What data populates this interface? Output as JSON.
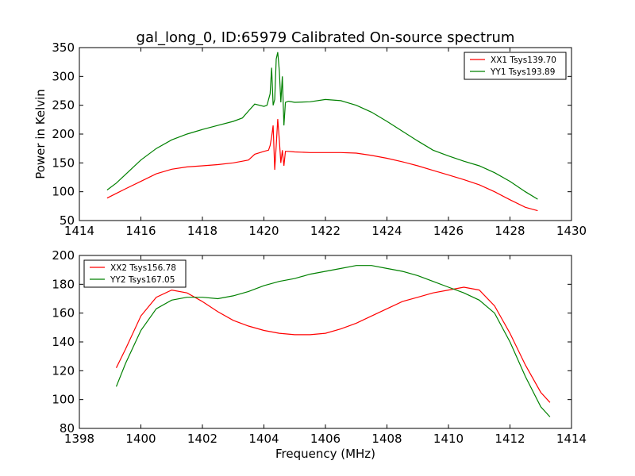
{
  "chart_data": {
    "title": "gal_long_0, ID:65979 Calibrated On-source spectrum",
    "xlabel": "Frequency (MHz)",
    "ylabel": "Power in Kelvin",
    "subplots": [
      {
        "type": "line",
        "xlim": [
          1414,
          1430
        ],
        "ylim": [
          50,
          350
        ],
        "xticks": [
          1414,
          1416,
          1418,
          1420,
          1422,
          1424,
          1426,
          1428,
          1430
        ],
        "yticks": [
          50,
          100,
          150,
          200,
          250,
          300,
          350
        ],
        "legend_position": "top-right",
        "grid": false,
        "series": [
          {
            "name": "XX1 Tsys139.70",
            "color": "#ff0000",
            "x": [
              1414.9,
              1415.2,
              1415.5,
              1416.0,
              1416.5,
              1417.0,
              1417.5,
              1418.0,
              1418.5,
              1419.0,
              1419.3,
              1419.5,
              1419.7,
              1420.0,
              1420.15,
              1420.2,
              1420.25,
              1420.3,
              1420.35,
              1420.4,
              1420.45,
              1420.5,
              1420.55,
              1420.6,
              1420.65,
              1420.7,
              1420.8,
              1421.0,
              1421.5,
              1422.0,
              1422.5,
              1423.0,
              1423.5,
              1424.0,
              1424.5,
              1425.0,
              1425.5,
              1426.0,
              1426.5,
              1427.0,
              1427.5,
              1428.0,
              1428.5,
              1428.9
            ],
            "y": [
              89,
              97,
              105,
              118,
              131,
              139,
              143,
              145,
              147,
              150,
              153,
              155,
              165,
              170,
              172,
              180,
              195,
              215,
              138,
              180,
              226,
              190,
              150,
              172,
              145,
              170,
              170,
              169,
              168,
              168,
              168,
              167,
              163,
              158,
              152,
              145,
              137,
              129,
              121,
              112,
              100,
              86,
              73,
              67
            ]
          },
          {
            "name": "YY1 Tsys193.89",
            "color": "#008000",
            "x": [
              1414.9,
              1415.2,
              1415.5,
              1416.0,
              1416.5,
              1417.0,
              1417.5,
              1418.0,
              1418.5,
              1419.0,
              1419.3,
              1419.5,
              1419.7,
              1420.0,
              1420.1,
              1420.2,
              1420.25,
              1420.3,
              1420.35,
              1420.4,
              1420.45,
              1420.5,
              1420.55,
              1420.6,
              1420.65,
              1420.7,
              1420.8,
              1421.0,
              1421.5,
              1422.0,
              1422.5,
              1423.0,
              1423.5,
              1424.0,
              1424.5,
              1425.0,
              1425.5,
              1426.0,
              1426.5,
              1427.0,
              1427.5,
              1428.0,
              1428.5,
              1428.9
            ],
            "y": [
              103,
              115,
              130,
              155,
              175,
              190,
              200,
              208,
              215,
              222,
              228,
              240,
              252,
              248,
              250,
              270,
              315,
              250,
              260,
              330,
              342,
              310,
              255,
              300,
              215,
              255,
              257,
              255,
              256,
              260,
              258,
              250,
              238,
              222,
              205,
              188,
              172,
              162,
              153,
              145,
              133,
              118,
              100,
              87
            ]
          }
        ]
      },
      {
        "type": "line",
        "xlim": [
          1398,
          1414
        ],
        "ylim": [
          80,
          200
        ],
        "xticks": [
          1398,
          1400,
          1402,
          1404,
          1406,
          1408,
          1410,
          1412,
          1414
        ],
        "yticks": [
          80,
          100,
          120,
          140,
          160,
          180,
          200
        ],
        "legend_position": "top-left",
        "grid": false,
        "series": [
          {
            "name": "XX2 Tsys156.78",
            "color": "#ff0000",
            "x": [
              1399.2,
              1399.5,
              1400.0,
              1400.5,
              1401.0,
              1401.5,
              1402.0,
              1402.5,
              1403.0,
              1403.5,
              1404.0,
              1404.5,
              1405.0,
              1405.5,
              1406.0,
              1406.5,
              1407.0,
              1407.5,
              1408.0,
              1408.5,
              1409.0,
              1409.5,
              1410.0,
              1410.5,
              1411.0,
              1411.5,
              1412.0,
              1412.5,
              1413.0,
              1413.3
            ],
            "y": [
              122,
              135,
              158,
              171,
              176,
              174,
              168,
              161,
              155,
              151,
              148,
              146,
              145,
              145,
              146,
              149,
              153,
              158,
              163,
              168,
              171,
              174,
              176,
              178,
              176,
              165,
              146,
              124,
              105,
              98
            ]
          },
          {
            "name": "YY2 Tsys167.05",
            "color": "#008000",
            "x": [
              1399.2,
              1399.5,
              1400.0,
              1400.5,
              1401.0,
              1401.5,
              1402.0,
              1402.5,
              1403.0,
              1403.5,
              1404.0,
              1404.5,
              1405.0,
              1405.5,
              1406.0,
              1406.5,
              1407.0,
              1407.5,
              1408.0,
              1408.5,
              1409.0,
              1409.5,
              1410.0,
              1410.5,
              1411.0,
              1411.5,
              1412.0,
              1412.5,
              1413.0,
              1413.3
            ],
            "y": [
              109,
              125,
              148,
              163,
              169,
              171,
              171,
              170,
              172,
              175,
              179,
              182,
              184,
              187,
              189,
              191,
              193,
              193,
              191,
              189,
              186,
              182,
              178,
              174,
              169,
              160,
              140,
              116,
              95,
              88
            ]
          }
        ]
      }
    ]
  }
}
